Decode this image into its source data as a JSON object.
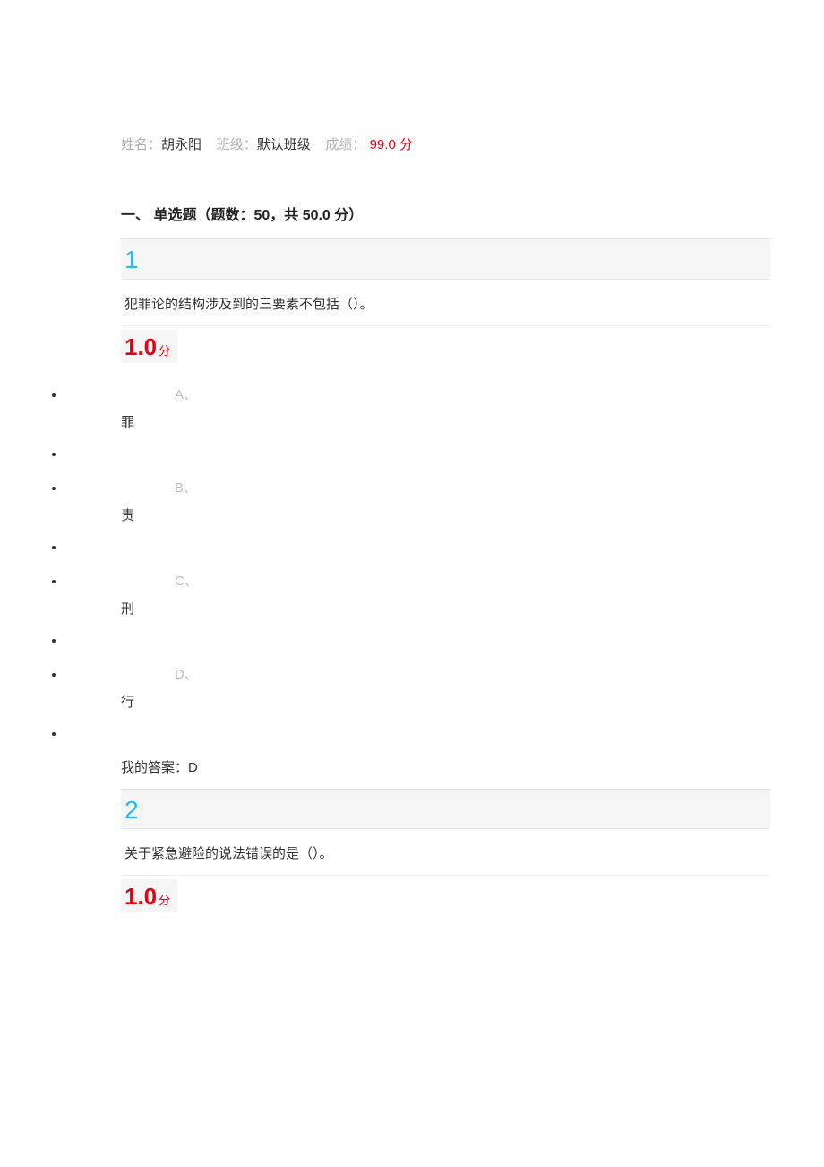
{
  "header": {
    "name_label": "姓名：",
    "name_value": "胡永阳",
    "class_label": "班级：",
    "class_value": "默认班级",
    "score_label": "成绩：",
    "score_value": "99.0 分"
  },
  "section": {
    "title": "一、 单选题（题数：50，共 50.0 分）"
  },
  "questions": [
    {
      "number": "1",
      "text": "犯罪论的结构涉及到的三要素不包括（）。",
      "score_value": "1.0",
      "score_unit": "分",
      "options": [
        {
          "letter": "A、",
          "text": "罪"
        },
        {
          "letter": "B、",
          "text": "责"
        },
        {
          "letter": "C、",
          "text": "刑"
        },
        {
          "letter": "D、",
          "text": "行"
        }
      ],
      "answer_label": "我的答案：",
      "answer_value": "D"
    },
    {
      "number": "2",
      "text": "关于紧急避险的说法错误的是（）。",
      "score_value": "1.0",
      "score_unit": "分"
    }
  ],
  "colors": {
    "gray_label": "#b0b0b0",
    "dark_text": "#333333",
    "red": "#e60012",
    "qnum_blue": "#29b6f6",
    "bar_bg": "#f5f5f5",
    "bar_border": "#e0e0e0",
    "opt_letter": "#bdbdbd"
  }
}
